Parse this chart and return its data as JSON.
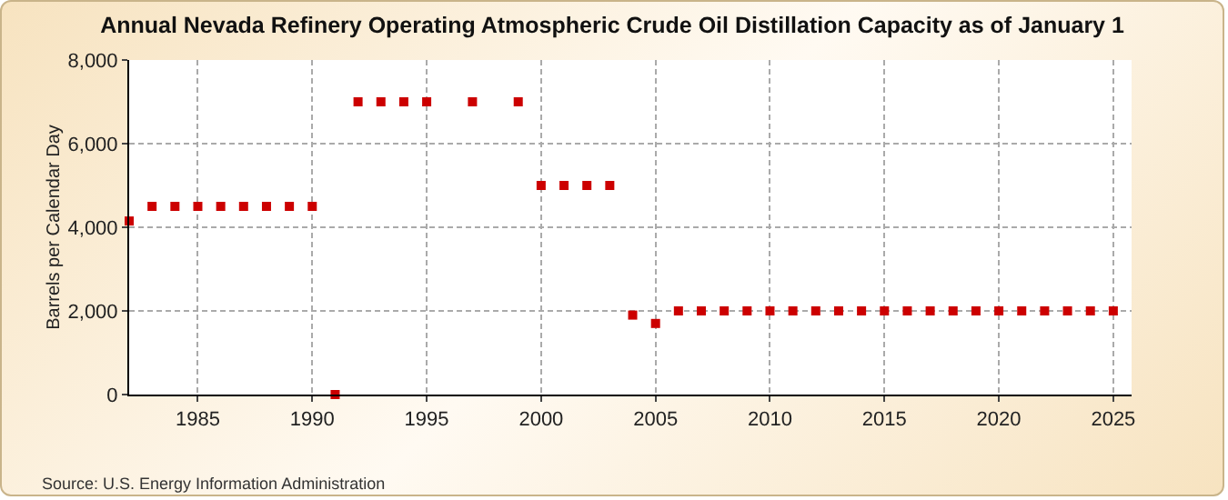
{
  "chart_data": {
    "type": "scatter",
    "title": "Annual Nevada Refinery Operating Atmospheric Crude Oil Distillation Capacity as of January 1",
    "ylabel": "Barrels per Calendar Day",
    "annotations": [
      "Source: U.S. Energy Information Administration"
    ],
    "x": [
      1982,
      1983,
      1984,
      1985,
      1986,
      1987,
      1988,
      1989,
      1990,
      1991,
      1992,
      1993,
      1994,
      1995,
      1996,
      1997,
      1998,
      1999,
      2000,
      2001,
      2002,
      2003,
      2004,
      2005,
      2006,
      2007,
      2008,
      2009,
      2010,
      2011,
      2012,
      2013,
      2014,
      2015,
      2016,
      2017,
      2018,
      2019,
      2020,
      2021,
      2022,
      2023,
      2024,
      2025
    ],
    "series": [
      {
        "color": "#cc0000",
        "values": [
          4150,
          4500,
          4500,
          4500,
          4500,
          4500,
          4500,
          4500,
          4500,
          0,
          7000,
          7000,
          7000,
          7000,
          null,
          7000,
          null,
          7000,
          5000,
          5000,
          5000,
          5000,
          1900,
          1700,
          2000,
          2000,
          2000,
          2000,
          2000,
          2000,
          2000,
          2000,
          2000,
          2000,
          2000,
          2000,
          2000,
          2000,
          2000,
          2000,
          2000,
          2000,
          2000,
          2000
        ]
      }
    ],
    "xlim": [
      1982,
      2025.8
    ],
    "xticks": [
      1985,
      1990,
      1995,
      2000,
      2005,
      2010,
      2015,
      2020,
      2025
    ],
    "ylim": [
      0,
      8000
    ],
    "yticks": [
      {
        "value": 0,
        "label": "0"
      },
      {
        "value": 2000,
        "label": "2,000"
      },
      {
        "value": 4000,
        "label": "4,000"
      },
      {
        "value": 6000,
        "label": "6,000"
      },
      {
        "value": 8000,
        "label": "8,000"
      }
    ],
    "grid": true,
    "marker": "square"
  }
}
